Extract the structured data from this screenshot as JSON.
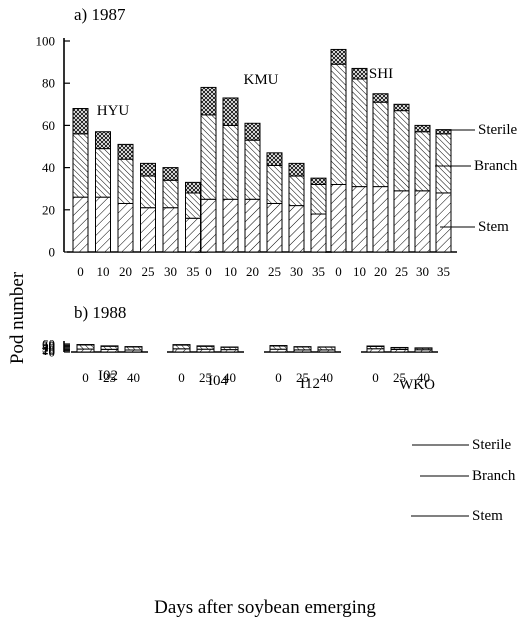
{
  "chart_data": [
    {
      "type": "bar",
      "title": "a) 1987",
      "xlabel": "Days after soybean emerging",
      "ylabel": "Pod number",
      "ylim": [
        0,
        100
      ],
      "yticks": [
        "0",
        "20",
        "40",
        "60",
        "80",
        "100"
      ],
      "stack_labels": [
        "Sterile",
        "Branch",
        "Stem"
      ],
      "groups": [
        {
          "name": "HYU",
          "categories": [
            "0",
            "10",
            "20",
            "25",
            "30",
            "35"
          ],
          "series": [
            {
              "name": "Stem",
              "values": [
                26,
                26,
                23,
                21,
                21,
                16
              ]
            },
            {
              "name": "Branch",
              "values": [
                30,
                23,
                21,
                15,
                13,
                12
              ]
            },
            {
              "name": "Sterile",
              "values": [
                12,
                8,
                7,
                6,
                6,
                5
              ]
            }
          ]
        },
        {
          "name": "KMU",
          "categories": [
            "0",
            "10",
            "20",
            "25",
            "30",
            "35"
          ],
          "series": [
            {
              "name": "Stem",
              "values": [
                25,
                25,
                25,
                23,
                22,
                18
              ]
            },
            {
              "name": "Branch",
              "values": [
                40,
                35,
                28,
                18,
                14,
                14
              ]
            },
            {
              "name": "Sterile",
              "values": [
                13,
                13,
                8,
                6,
                6,
                3
              ]
            }
          ]
        },
        {
          "name": "SHI",
          "categories": [
            "0",
            "10",
            "20",
            "25",
            "30",
            "35"
          ],
          "series": [
            {
              "name": "Stem",
              "values": [
                32,
                31,
                31,
                29,
                29,
                28
              ]
            },
            {
              "name": "Branch",
              "values": [
                57,
                51,
                40,
                38,
                28,
                28
              ]
            },
            {
              "name": "Sterile",
              "values": [
                7,
                5,
                4,
                3,
                3,
                2
              ]
            }
          ]
        }
      ]
    },
    {
      "type": "bar",
      "title": "b) 1988",
      "xlabel": "Days after soybean emerging",
      "ylabel": "Pod number",
      "ylim": [
        0,
        60
      ],
      "yticks": [
        "0",
        "10",
        "20",
        "30",
        "40",
        "50",
        "60"
      ],
      "stack_labels": [
        "Sterile",
        "Branch",
        "Stem"
      ],
      "groups": [
        {
          "name": "I02",
          "categories": [
            "0",
            "25",
            "40"
          ],
          "series": [
            {
              "name": "Stem",
              "values": [
                22,
                20,
                15
              ]
            },
            {
              "name": "Branch",
              "values": [
                31,
                23,
                23
              ]
            },
            {
              "name": "Sterile",
              "values": [
                3,
                3,
                2.5
              ]
            }
          ]
        },
        {
          "name": "I04",
          "categories": [
            "0",
            "25",
            "40"
          ],
          "series": [
            {
              "name": "Stem",
              "values": [
                24,
                21,
                18
              ]
            },
            {
              "name": "Branch",
              "values": [
                28,
                22,
                18
              ]
            },
            {
              "name": "Sterile",
              "values": [
                3.5,
                3,
                1.5
              ]
            }
          ]
        },
        {
          "name": "I12",
          "categories": [
            "0",
            "25",
            "40"
          ],
          "series": [
            {
              "name": "Stem",
              "values": [
                21,
                16,
                16
              ]
            },
            {
              "name": "Branch",
              "values": [
                24,
                22,
                21
              ]
            },
            {
              "name": "Sterile",
              "values": [
                3.5,
                2,
                1
              ]
            }
          ]
        },
        {
          "name": "WKO",
          "categories": [
            "0",
            "25",
            "40"
          ],
          "series": [
            {
              "name": "Stem",
              "values": [
                24.5,
                19,
                17
              ]
            },
            {
              "name": "Branch",
              "values": [
                17,
                13,
                12
              ]
            },
            {
              "name": "Sterile",
              "values": [
                3.5,
                2,
                2
              ]
            }
          ]
        }
      ]
    }
  ]
}
